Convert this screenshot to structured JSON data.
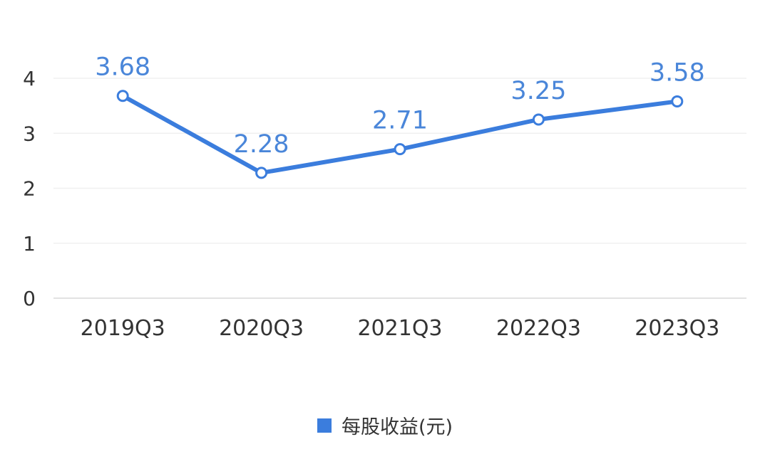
{
  "chart_data": {
    "type": "line",
    "categories": [
      "2019Q3",
      "2020Q3",
      "2021Q3",
      "2022Q3",
      "2023Q3"
    ],
    "series": [
      {
        "name": "每股收益(元)",
        "values": [
          3.68,
          2.28,
          2.71,
          3.25,
          3.58
        ],
        "data_labels": [
          "3.68",
          "2.28",
          "2.71",
          "3.25",
          "3.58"
        ],
        "color": "#3b7ddd"
      }
    ],
    "y_ticks": [
      "0",
      "1",
      "2",
      "3",
      "4"
    ],
    "ylim": [
      0,
      4
    ],
    "grid": true,
    "legend_position": "bottom-center",
    "label_color": "#4a86d9"
  }
}
